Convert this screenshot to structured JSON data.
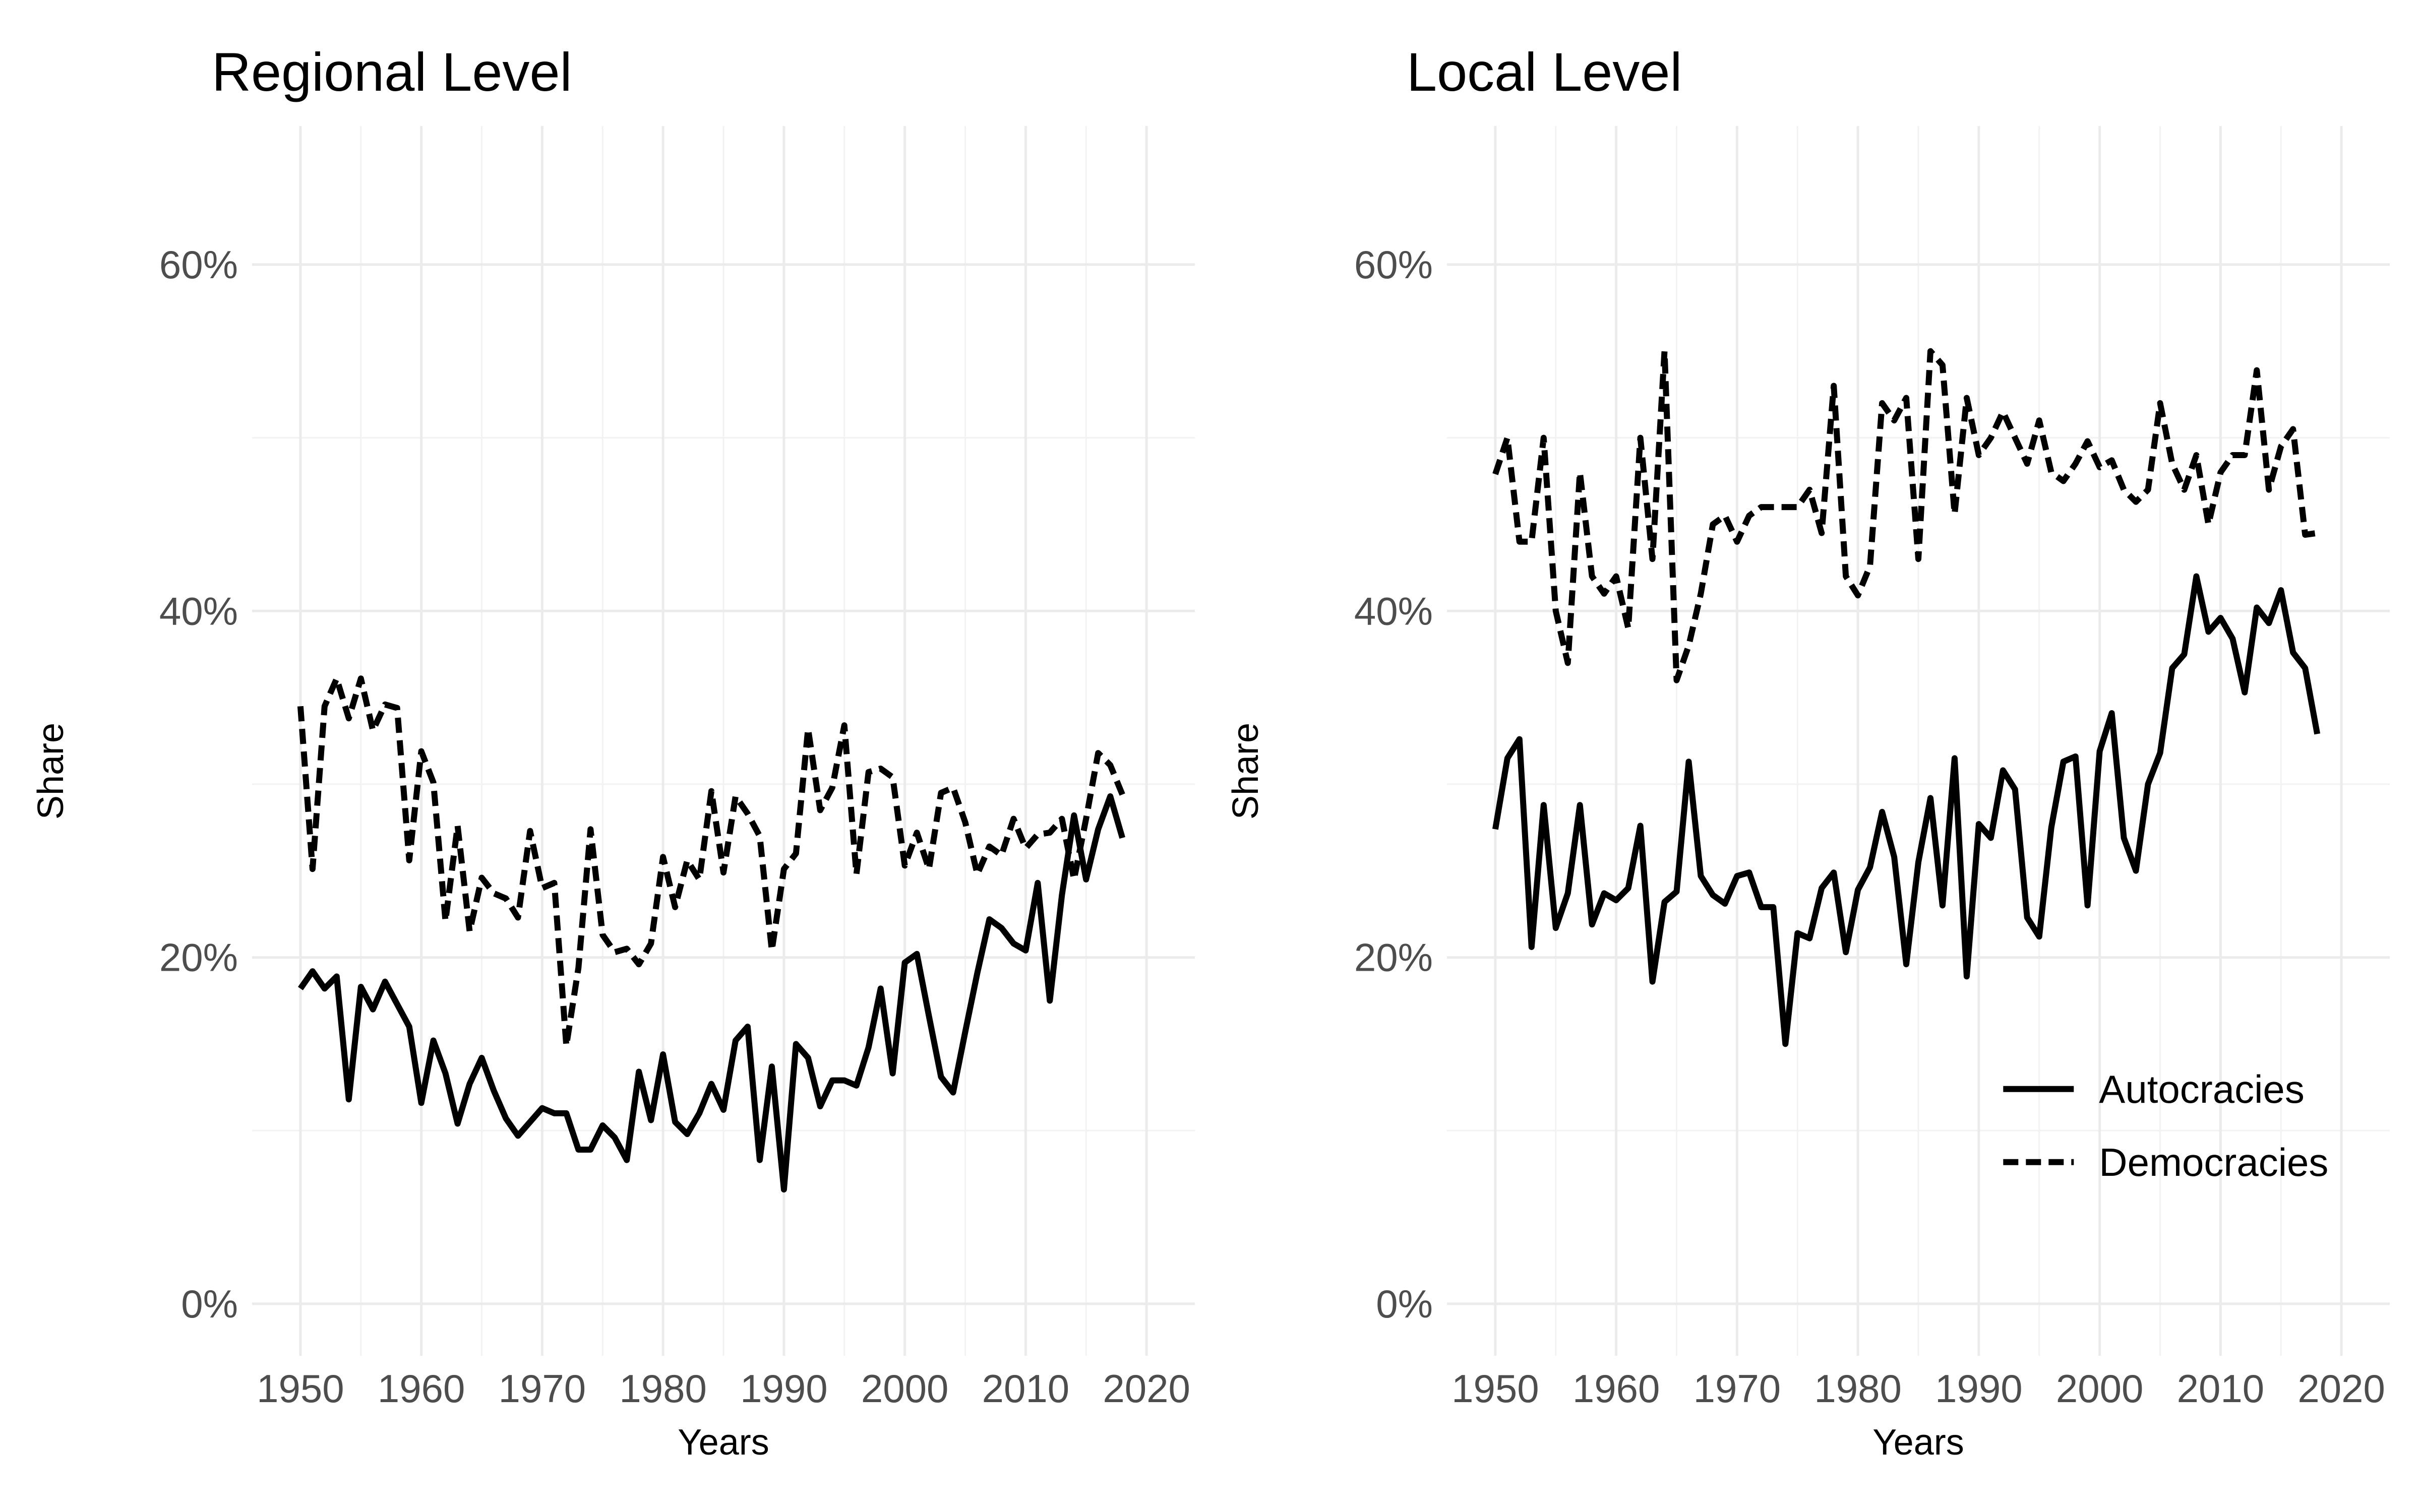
{
  "chart_data": [
    {
      "type": "line",
      "title": "Regional Level",
      "xlabel": "Years",
      "ylabel": "Share",
      "xlim": [
        1946,
        2024
      ],
      "ylim": [
        -3,
        68
      ],
      "x_ticks": [
        "1950",
        "1960",
        "1970",
        "1980",
        "1990",
        "2000",
        "2010",
        "2020"
      ],
      "y_ticks": [
        "0%",
        "20%",
        "40%",
        "60%"
      ],
      "grid": true,
      "legend": null,
      "x": [
        1950,
        1951,
        1952,
        1953,
        1954,
        1955,
        1956,
        1957,
        1958,
        1959,
        1960,
        1961,
        1962,
        1963,
        1964,
        1965,
        1966,
        1967,
        1968,
        1969,
        1970,
        1971,
        1972,
        1973,
        1974,
        1975,
        1976,
        1977,
        1978,
        1979,
        1980,
        1981,
        1982,
        1983,
        1984,
        1985,
        1986,
        1987,
        1988,
        1989,
        1990,
        1991,
        1992,
        1993,
        1994,
        1995,
        1996,
        1997,
        1998,
        1999,
        2000,
        2001,
        2002,
        2003,
        2004,
        2005,
        2006,
        2007,
        2008,
        2009,
        2010,
        2011,
        2012,
        2013,
        2014,
        2015,
        2016,
        2017,
        2018
      ],
      "series": [
        {
          "name": "Autocracies",
          "style": "solid",
          "values": [
            18.2,
            19.2,
            18.2,
            18.9,
            11.8,
            18.3,
            17.0,
            18.6,
            17.3,
            16.0,
            11.6,
            15.2,
            13.3,
            10.4,
            12.7,
            14.2,
            12.3,
            10.7,
            9.7,
            10.5,
            11.3,
            11.0,
            11.0,
            8.9,
            8.9,
            10.3,
            9.6,
            8.3,
            13.4,
            10.6,
            14.4,
            10.5,
            9.8,
            11.0,
            12.7,
            11.2,
            15.2,
            16.0,
            8.3,
            13.7,
            6.6,
            15.0,
            14.2,
            11.4,
            12.9,
            12.9,
            12.6,
            14.8,
            18.2,
            13.3,
            19.7,
            20.2,
            16.6,
            13.1,
            12.2,
            15.7,
            19.1,
            22.2,
            21.7,
            20.8,
            20.4,
            24.3,
            17.5,
            23.6,
            28.2,
            24.5,
            27.4,
            29.3,
            26.9
          ]
        },
        {
          "name": "Democracies",
          "style": "dashed",
          "values": [
            34.5,
            25.1,
            34.5,
            36.1,
            33.8,
            36.1,
            33.1,
            34.6,
            34.4,
            25.6,
            31.9,
            30.1,
            22.1,
            27.6,
            21.5,
            24.6,
            23.7,
            23.4,
            22.3,
            27.3,
            24.0,
            24.3,
            14.9,
            19.4,
            27.4,
            21.3,
            20.3,
            20.5,
            19.6,
            20.8,
            25.8,
            22.9,
            25.6,
            24.5,
            29.6,
            24.9,
            29.3,
            28.3,
            27.0,
            20.4,
            25.1,
            26.0,
            33.2,
            28.5,
            29.8,
            33.4,
            24.8,
            30.7,
            30.9,
            30.4,
            25.3,
            27.2,
            25.1,
            29.5,
            29.8,
            27.8,
            24.8,
            26.4,
            25.9,
            28.0,
            26.3,
            27.1,
            27.2,
            28.0,
            24.5,
            28.0,
            31.8,
            31.1,
            29.4
          ]
        }
      ]
    },
    {
      "type": "line",
      "title": "Local Level",
      "xlabel": "Years",
      "ylabel": "Share",
      "xlim": [
        1946,
        2024
      ],
      "ylim": [
        -3,
        68
      ],
      "x_ticks": [
        "1950",
        "1960",
        "1970",
        "1980",
        "1990",
        "2000",
        "2010",
        "2020"
      ],
      "y_ticks": [
        "0%",
        "20%",
        "40%",
        "60%"
      ],
      "grid": true,
      "legend": "bottom-right",
      "x": [
        1950,
        1951,
        1952,
        1953,
        1954,
        1955,
        1956,
        1957,
        1958,
        1959,
        1960,
        1961,
        1962,
        1963,
        1964,
        1965,
        1966,
        1967,
        1968,
        1969,
        1970,
        1971,
        1972,
        1973,
        1974,
        1975,
        1976,
        1977,
        1978,
        1979,
        1980,
        1981,
        1982,
        1983,
        1984,
        1985,
        1986,
        1987,
        1988,
        1989,
        1990,
        1991,
        1992,
        1993,
        1994,
        1995,
        1996,
        1997,
        1998,
        1999,
        2000,
        2001,
        2002,
        2003,
        2004,
        2005,
        2006,
        2007,
        2008,
        2009,
        2010,
        2011,
        2012,
        2013,
        2014,
        2015,
        2016,
        2017,
        2018
      ],
      "series": [
        {
          "name": "Autocracies",
          "style": "solid",
          "values": [
            27.4,
            31.5,
            32.6,
            20.6,
            28.8,
            21.7,
            23.7,
            28.8,
            21.9,
            23.7,
            23.3,
            24.0,
            27.6,
            18.6,
            23.2,
            23.8,
            31.3,
            24.7,
            23.6,
            23.1,
            24.7,
            24.9,
            22.9,
            22.9,
            15.0,
            21.4,
            21.1,
            24.0,
            24.9,
            20.3,
            23.9,
            25.2,
            28.4,
            25.8,
            19.6,
            25.5,
            29.2,
            23.0,
            31.5,
            18.9,
            27.7,
            26.9,
            30.8,
            29.7,
            22.3,
            21.2,
            27.5,
            31.3,
            31.6,
            23.0,
            31.9,
            34.1,
            26.9,
            25.0,
            30.0,
            31.8,
            36.7,
            37.5,
            42.0,
            38.8,
            39.6,
            38.4,
            35.3,
            40.2,
            39.3,
            41.2,
            37.6,
            36.7,
            32.9
          ]
        },
        {
          "name": "Democracies",
          "style": "dashed",
          "values": [
            47.9,
            50.0,
            44.0,
            44.0,
            50.0,
            40.0,
            37.0,
            48.0,
            42.0,
            41.0,
            42.0,
            39.0,
            50.0,
            43.0,
            55.0,
            36.0,
            38.0,
            41.0,
            45.0,
            45.5,
            44.0,
            45.5,
            46.0,
            46.0,
            46.0,
            46.0,
            47.0,
            44.5,
            53.0,
            42.0,
            40.9,
            42.6,
            52.0,
            51.0,
            52.3,
            43.0,
            55.0,
            54.2,
            45.6,
            52.3,
            49.0,
            50.0,
            51.5,
            50.0,
            48.5,
            51.0,
            48.0,
            47.5,
            48.5,
            49.8,
            48.3,
            48.7,
            47.0,
            46.3,
            47.0,
            52.0,
            48.5,
            47.0,
            49.0,
            45.0,
            48.0,
            49.0,
            49.0,
            53.9,
            47.0,
            49.5,
            50.5,
            44.4,
            44.5
          ]
        }
      ]
    }
  ]
}
